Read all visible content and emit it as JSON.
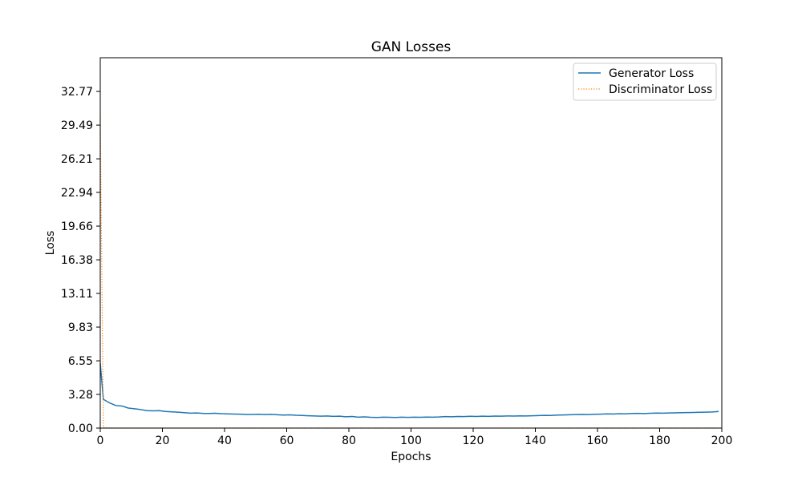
{
  "chart_data": {
    "type": "line",
    "title": "GAN Losses",
    "xlabel": "Epochs",
    "ylabel": "Loss",
    "xlim": [
      0,
      200
    ],
    "ylim": [
      0,
      36.05
    ],
    "x_ticks": [
      0,
      20,
      40,
      60,
      80,
      100,
      120,
      140,
      160,
      180,
      200
    ],
    "x_tick_labels": [
      "0",
      "20",
      "40",
      "60",
      "80",
      "100",
      "120",
      "140",
      "160",
      "180",
      "200"
    ],
    "y_ticks": [
      0,
      3.28,
      6.55,
      9.83,
      13.11,
      16.38,
      19.66,
      22.94,
      26.21,
      29.49,
      32.77
    ],
    "y_tick_labels": [
      "0.00",
      "3.28",
      "6.55",
      "9.83",
      "13.11",
      "16.38",
      "19.66",
      "22.94",
      "26.21",
      "29.49",
      "32.77"
    ],
    "grid": false,
    "legend_position": "top-right",
    "series": [
      {
        "name": "Generator Loss",
        "color": "#1f77b4",
        "style": "solid",
        "points": [
          [
            0,
            6.3
          ],
          [
            1,
            2.8
          ],
          [
            3,
            2.45
          ],
          [
            5,
            2.2
          ],
          [
            7,
            2.15
          ],
          [
            9,
            1.95
          ],
          [
            11,
            1.88
          ],
          [
            13,
            1.8
          ],
          [
            15,
            1.7
          ],
          [
            17,
            1.68
          ],
          [
            19,
            1.7
          ],
          [
            21,
            1.62
          ],
          [
            23,
            1.58
          ],
          [
            25,
            1.55
          ],
          [
            27,
            1.5
          ],
          [
            29,
            1.45
          ],
          [
            31,
            1.47
          ],
          [
            33,
            1.43
          ],
          [
            35,
            1.42
          ],
          [
            37,
            1.44
          ],
          [
            39,
            1.4
          ],
          [
            41,
            1.38
          ],
          [
            43,
            1.37
          ],
          [
            45,
            1.36
          ],
          [
            47,
            1.33
          ],
          [
            49,
            1.33
          ],
          [
            51,
            1.35
          ],
          [
            53,
            1.32
          ],
          [
            55,
            1.34
          ],
          [
            57,
            1.3
          ],
          [
            59,
            1.27
          ],
          [
            61,
            1.29
          ],
          [
            63,
            1.25
          ],
          [
            65,
            1.23
          ],
          [
            67,
            1.2
          ],
          [
            69,
            1.18
          ],
          [
            71,
            1.16
          ],
          [
            73,
            1.18
          ],
          [
            75,
            1.14
          ],
          [
            77,
            1.16
          ],
          [
            79,
            1.1
          ],
          [
            81,
            1.13
          ],
          [
            83,
            1.06
          ],
          [
            85,
            1.09
          ],
          [
            87,
            1.05
          ],
          [
            89,
            1.03
          ],
          [
            91,
            1.06
          ],
          [
            93,
            1.05
          ],
          [
            95,
            1.03
          ],
          [
            97,
            1.06
          ],
          [
            99,
            1.04
          ],
          [
            101,
            1.06
          ],
          [
            103,
            1.05
          ],
          [
            105,
            1.07
          ],
          [
            107,
            1.06
          ],
          [
            109,
            1.08
          ],
          [
            111,
            1.12
          ],
          [
            113,
            1.1
          ],
          [
            115,
            1.13
          ],
          [
            117,
            1.12
          ],
          [
            119,
            1.15
          ],
          [
            121,
            1.13
          ],
          [
            123,
            1.16
          ],
          [
            125,
            1.14
          ],
          [
            127,
            1.17
          ],
          [
            129,
            1.16
          ],
          [
            131,
            1.18
          ],
          [
            133,
            1.17
          ],
          [
            135,
            1.19
          ],
          [
            137,
            1.18
          ],
          [
            139,
            1.2
          ],
          [
            141,
            1.22
          ],
          [
            143,
            1.24
          ],
          [
            145,
            1.23
          ],
          [
            147,
            1.27
          ],
          [
            149,
            1.28
          ],
          [
            151,
            1.3
          ],
          [
            153,
            1.32
          ],
          [
            155,
            1.33
          ],
          [
            157,
            1.32
          ],
          [
            159,
            1.35
          ],
          [
            161,
            1.36
          ],
          [
            163,
            1.38
          ],
          [
            165,
            1.37
          ],
          [
            167,
            1.4
          ],
          [
            169,
            1.39
          ],
          [
            171,
            1.42
          ],
          [
            173,
            1.43
          ],
          [
            175,
            1.41
          ],
          [
            177,
            1.44
          ],
          [
            179,
            1.46
          ],
          [
            181,
            1.45
          ],
          [
            183,
            1.47
          ],
          [
            185,
            1.48
          ],
          [
            187,
            1.5
          ],
          [
            189,
            1.51
          ],
          [
            191,
            1.52
          ],
          [
            193,
            1.54
          ],
          [
            195,
            1.55
          ],
          [
            197,
            1.57
          ],
          [
            199,
            1.62
          ]
        ]
      },
      {
        "name": "Discriminator Loss",
        "color": "#ff7f0e",
        "style": "dotted",
        "points": [
          [
            0,
            30.5
          ],
          [
            1,
            0.05
          ],
          [
            3,
            0.02
          ],
          [
            5,
            0.01
          ],
          [
            10,
            0.01
          ],
          [
            20,
            0.01
          ],
          [
            40,
            0.01
          ],
          [
            60,
            0.01
          ],
          [
            80,
            0.01
          ],
          [
            100,
            0.01
          ],
          [
            120,
            0.01
          ],
          [
            140,
            0.01
          ],
          [
            160,
            0.01
          ],
          [
            180,
            0.01
          ],
          [
            199,
            0.01
          ]
        ]
      }
    ]
  }
}
